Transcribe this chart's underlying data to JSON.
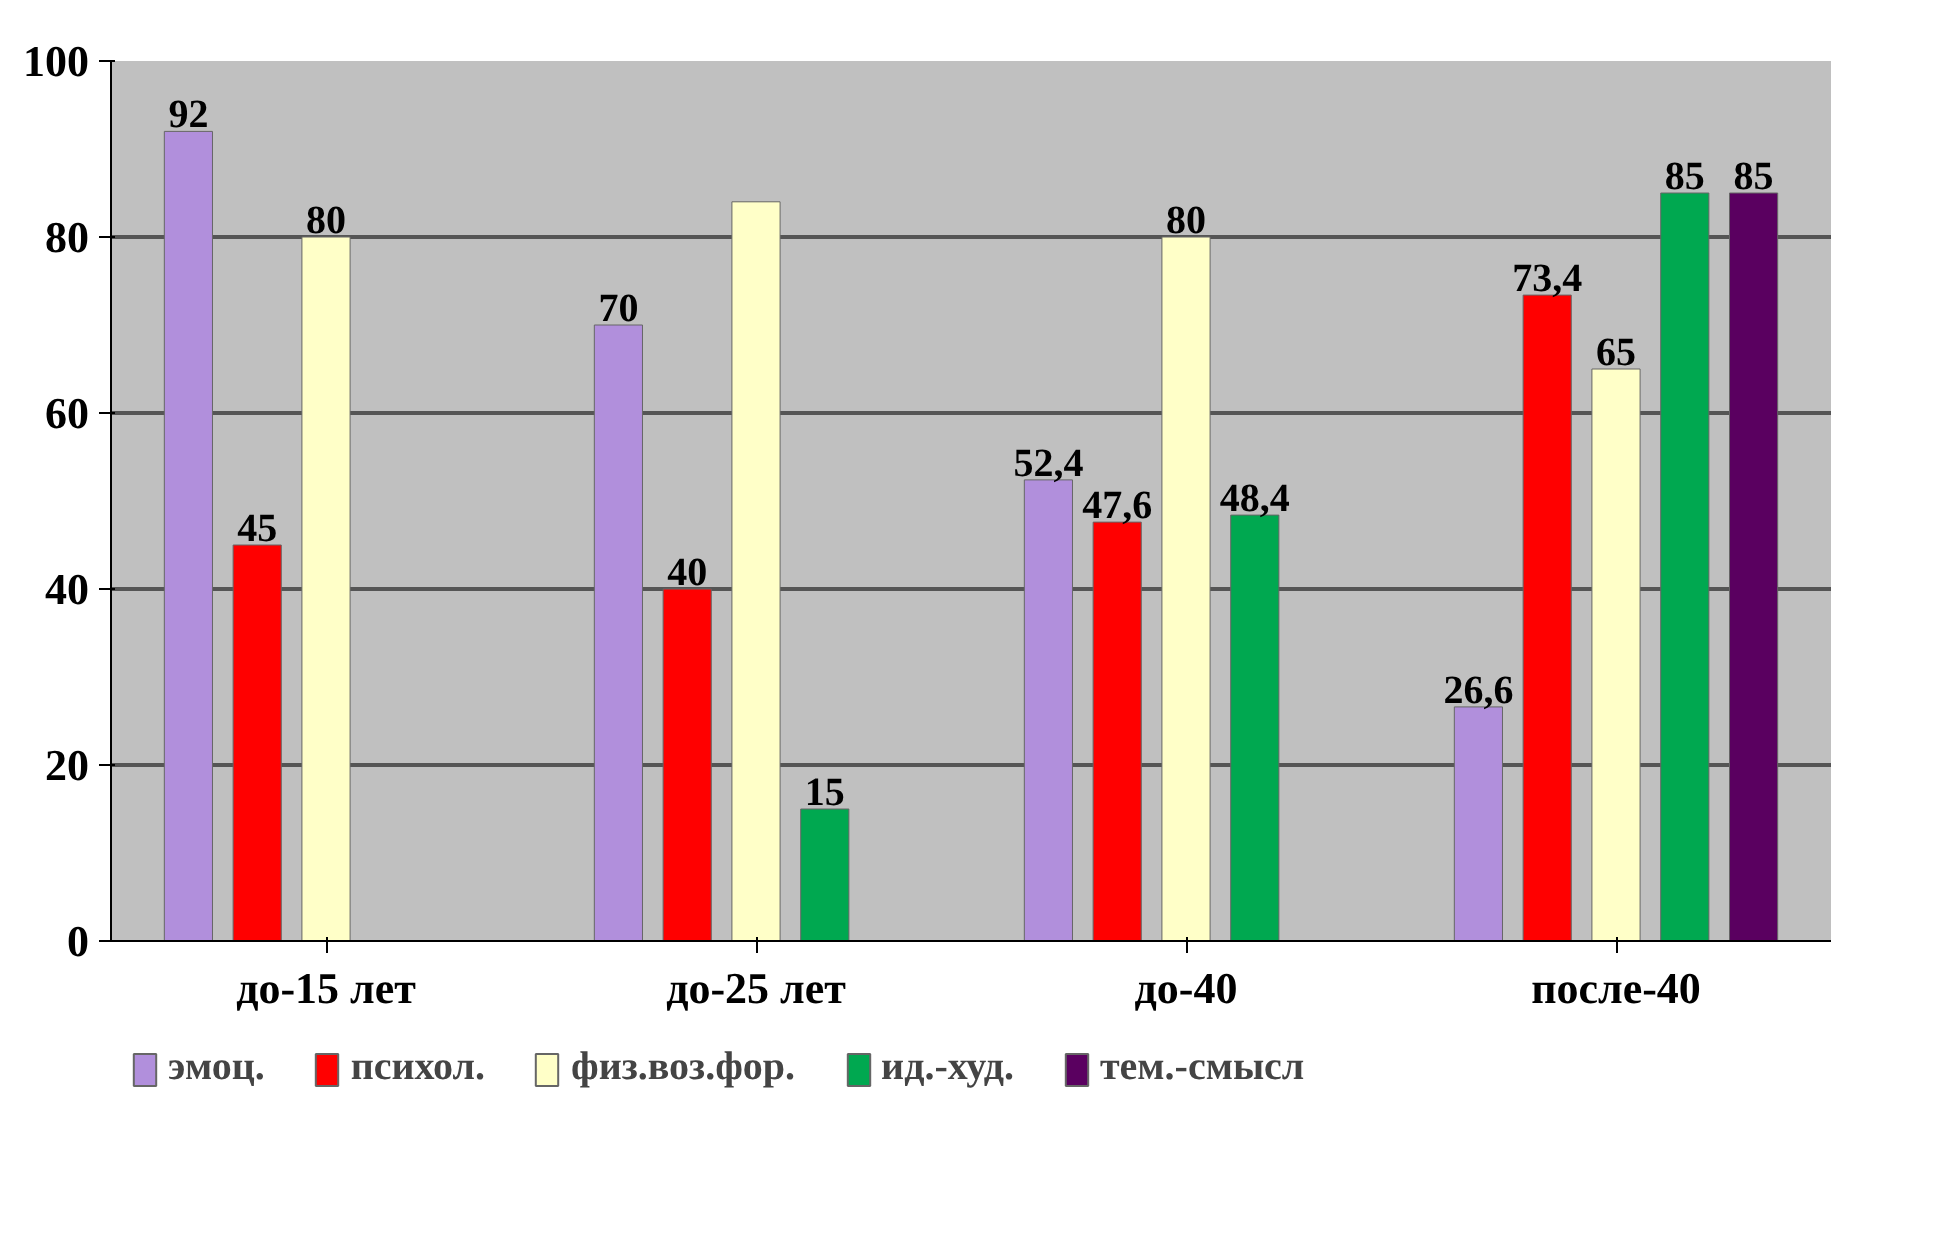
{
  "chart_data": {
    "type": "bar",
    "categories": [
      "до-15 лет",
      "до-25 лет",
      "до-40",
      "после-40"
    ],
    "series": [
      {
        "name": "эмоц.",
        "color": "#b18fdc",
        "values": [
          92,
          70,
          52.4,
          26.6
        ],
        "value_labels": [
          "92",
          "70",
          "52,4",
          "26,6"
        ]
      },
      {
        "name": "психол.",
        "color": "#ff0000",
        "values": [
          45,
          40,
          47.6,
          73.4
        ],
        "value_labels": [
          "45",
          "40",
          "47,6",
          "73,4"
        ]
      },
      {
        "name": "физ.воз.фор.",
        "color": "#ffffc8",
        "values": [
          80,
          84,
          80,
          65
        ],
        "value_labels": [
          "80",
          null,
          "80",
          "65"
        ]
      },
      {
        "name": "ид.-худ.",
        "color": "#00a850",
        "values": [
          null,
          15,
          48.4,
          85
        ],
        "value_labels": [
          null,
          "15",
          "48,4",
          "85"
        ]
      },
      {
        "name": "тем.-смысл",
        "color": "#5a0060",
        "values": [
          null,
          null,
          null,
          85
        ],
        "value_labels": [
          null,
          null,
          null,
          "85"
        ]
      }
    ],
    "ylim": [
      0,
      100
    ],
    "yticks": [
      0,
      20,
      40,
      60,
      80,
      100
    ],
    "grid": "y",
    "legend": "bottom"
  }
}
